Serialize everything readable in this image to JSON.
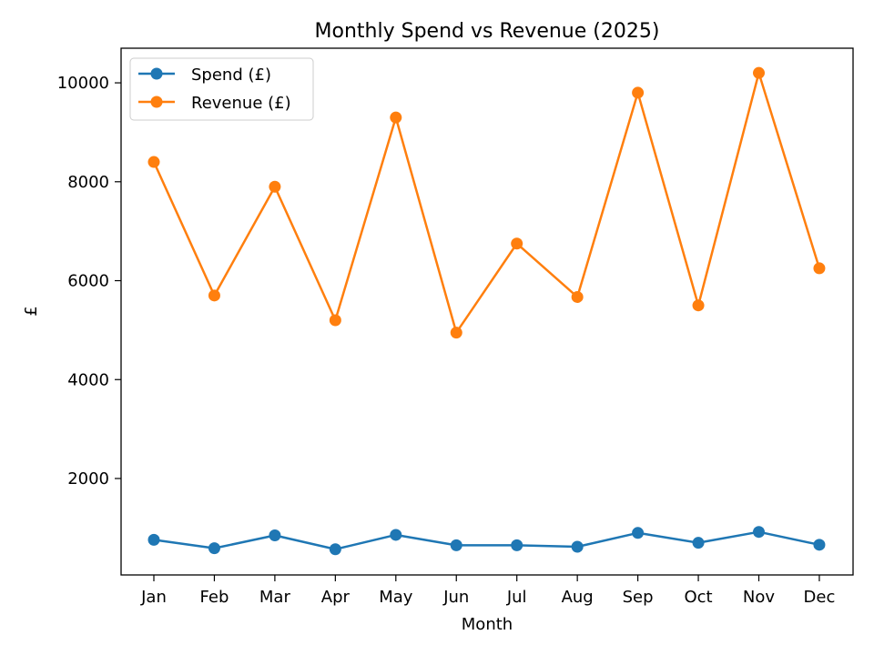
{
  "chart_data": {
    "type": "line",
    "title": "Monthly Spend vs Revenue (2025)",
    "xlabel": "Month",
    "ylabel": "£",
    "categories": [
      "Jan",
      "Feb",
      "Mar",
      "Apr",
      "May",
      "Jun",
      "Jul",
      "Aug",
      "Sep",
      "Oct",
      "Nov",
      "Dec"
    ],
    "yticks": [
      2000,
      4000,
      6000,
      8000,
      10000
    ],
    "ylim": [
      50,
      10700
    ],
    "grid": false,
    "legend_position": "top-left",
    "series": [
      {
        "name": "Spend (£)",
        "color": "#1f77b4",
        "marker": "circle",
        "values": [
          760,
          590,
          850,
          570,
          860,
          650,
          650,
          620,
          900,
          700,
          920,
          660
        ]
      },
      {
        "name": "Revenue (£)",
        "color": "#ff7f0e",
        "marker": "circle",
        "values": [
          8400,
          5700,
          7900,
          5200,
          9300,
          4950,
          6750,
          5670,
          9800,
          5500,
          10200,
          6250
        ]
      }
    ]
  }
}
